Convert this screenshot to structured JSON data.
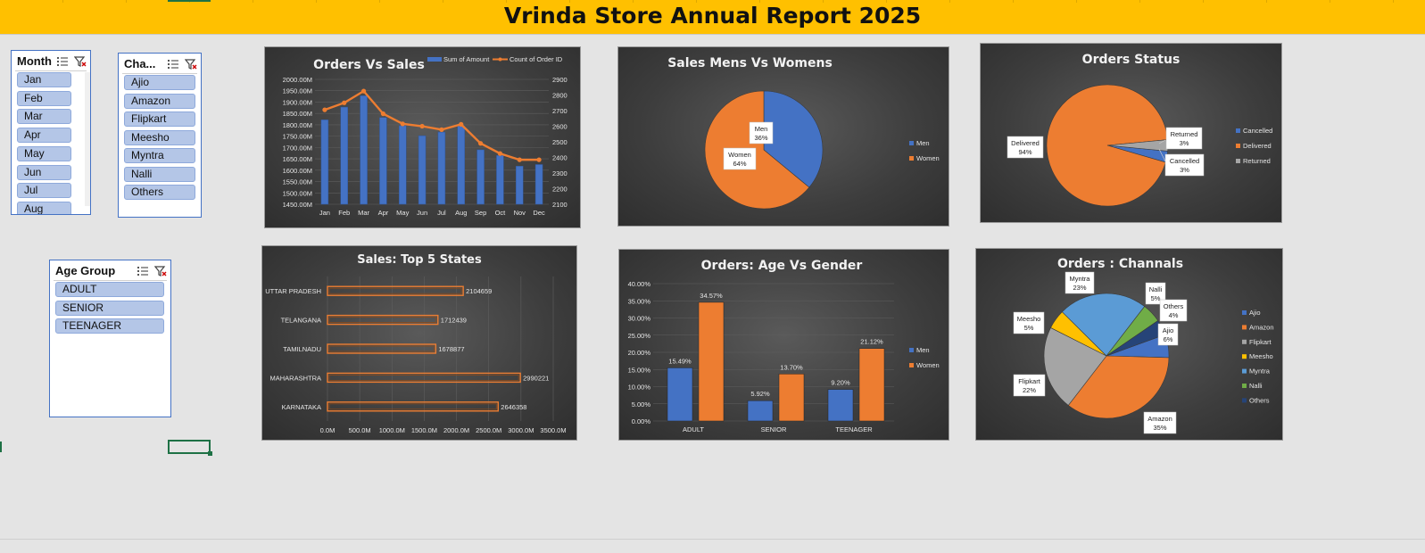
{
  "report": {
    "title": "Vrinda Store Annual Report 2025"
  },
  "slicers": {
    "month": {
      "title": "Month",
      "items": [
        "Jan",
        "Feb",
        "Mar",
        "Apr",
        "May",
        "Jun",
        "Jul",
        "Aug"
      ]
    },
    "channel": {
      "title": "Cha...",
      "items": [
        "Ajio",
        "Amazon",
        "Flipkart",
        "Meesho",
        "Myntra",
        "Nalli",
        "Others"
      ]
    },
    "age_group": {
      "title": "Age Group",
      "items": [
        "ADULT",
        "SENIOR",
        "TEENAGER"
      ]
    }
  },
  "icons": [
    "multi-select-icon",
    "clear-filter-icon"
  ],
  "colors": {
    "banner": "#ffc000",
    "blue": "#4472c4",
    "orange": "#ed7d31",
    "gray": "#a5a5a5",
    "yellow": "#ffc000",
    "lightblue": "#5b9bd5",
    "green": "#70ad47",
    "navy": "#264478"
  },
  "chart_data": [
    {
      "id": "orders_vs_sales",
      "type": "bar",
      "title": "Orders Vs Sales",
      "categories": [
        "Jan",
        "Feb",
        "Mar",
        "Apr",
        "May",
        "Jun",
        "Jul",
        "Aug",
        "Sep",
        "Oct",
        "Nov",
        "Dec"
      ],
      "series": [
        {
          "name": "Sum of Amount",
          "type": "bar",
          "axis": "left",
          "values": [
            1822,
            1878,
            1928,
            1832,
            1796,
            1752,
            1768,
            1795,
            1690,
            1665,
            1618,
            1625
          ]
        },
        {
          "name": "Count of Order ID",
          "type": "line",
          "axis": "right",
          "values": [
            2705,
            2750,
            2825,
            2680,
            2615,
            2600,
            2578,
            2612,
            2490,
            2425,
            2385,
            2385
          ]
        }
      ],
      "y_left": {
        "ylim": [
          1450,
          2000
        ],
        "ticks": [
          "1450.00M",
          "1500.00M",
          "1550.00M",
          "1600.00M",
          "1650.00M",
          "1700.00M",
          "1750.00M",
          "1800.00M",
          "1850.00M",
          "1900.00M",
          "1950.00M",
          "2000.00M"
        ]
      },
      "y_right": {
        "ylim": [
          2100,
          2900
        ],
        "ticks": [
          "2100",
          "2200",
          "2300",
          "2400",
          "2500",
          "2600",
          "2700",
          "2800",
          "2900"
        ]
      },
      "legend": "top-right",
      "grid": true
    },
    {
      "id": "sales_men_vs_women",
      "type": "pie",
      "title": "Sales Mens Vs Womens",
      "slices": [
        {
          "name": "Men",
          "value": 36,
          "label": "Men\n36%"
        },
        {
          "name": "Women",
          "value": 64,
          "label": "Women\n64%"
        }
      ],
      "legend": [
        "Men",
        "Women"
      ]
    },
    {
      "id": "orders_status",
      "type": "pie",
      "title": "Orders Status",
      "slices": [
        {
          "name": "Cancelled",
          "value": 3,
          "label": "Cancelled\n3%"
        },
        {
          "name": "Delivered",
          "value": 94,
          "label": "Delivered\n94%"
        },
        {
          "name": "Returned",
          "value": 3,
          "label": "Returned\n3%"
        }
      ],
      "legend": [
        "Cancelled",
        "Delivered",
        "Returned"
      ]
    },
    {
      "id": "top5_states",
      "type": "bar",
      "orientation": "horizontal",
      "title": "Sales: Top 5 States",
      "categories": [
        "UTTAR PRADESH",
        "TELANGANA",
        "TAMILNADU",
        "MAHARASHTRA",
        "KARNATAKA"
      ],
      "values": [
        2104659,
        1712439,
        1678877,
        2990221,
        2646358
      ],
      "value_labels": [
        "2104659",
        "1712439",
        "1678877",
        "2990221",
        "2646358"
      ],
      "xlim": [
        0,
        3500
      ],
      "x_ticks": [
        "0.0M",
        "500.0M",
        "1000.0M",
        "1500.0M",
        "2000.0M",
        "2500.0M",
        "3000.0M",
        "3500.0M"
      ],
      "grid": true
    },
    {
      "id": "age_vs_gender",
      "type": "bar",
      "title": "Orders: Age Vs Gender",
      "categories": [
        "ADULT",
        "SENIOR",
        "TEENAGER"
      ],
      "series": [
        {
          "name": "Men",
          "values": [
            15.49,
            5.92,
            9.2
          ],
          "labels": [
            "15.49%",
            "5.92%",
            "9.20%"
          ]
        },
        {
          "name": "Women",
          "values": [
            34.57,
            13.7,
            21.12
          ],
          "labels": [
            "34.57%",
            "13.70%",
            "21.12%"
          ]
        }
      ],
      "ylim": [
        0,
        40
      ],
      "y_ticks": [
        "0.00%",
        "5.00%",
        "10.00%",
        "15.00%",
        "20.00%",
        "25.00%",
        "30.00%",
        "35.00%",
        "40.00%"
      ],
      "legend": "right",
      "grid": true
    },
    {
      "id": "orders_channels",
      "type": "pie",
      "title": "Orders : Channals",
      "slices": [
        {
          "name": "Ajio",
          "value": 6,
          "label": "Ajio\n6%"
        },
        {
          "name": "Amazon",
          "value": 35,
          "label": "Amazon\n35%"
        },
        {
          "name": "Flipkart",
          "value": 22,
          "label": "Flipkart\n22%"
        },
        {
          "name": "Meesho",
          "value": 5,
          "label": "Meesho\n5%"
        },
        {
          "name": "Myntra",
          "value": 23,
          "label": "Myntra\n23%"
        },
        {
          "name": "Nalli",
          "value": 5,
          "label": "Nalli\n5%"
        },
        {
          "name": "Others",
          "value": 4,
          "label": "Others\n4%"
        }
      ],
      "legend": [
        "Ajio",
        "Amazon",
        "Flipkart",
        "Meesho",
        "Myntra",
        "Nalli",
        "Others"
      ]
    }
  ]
}
